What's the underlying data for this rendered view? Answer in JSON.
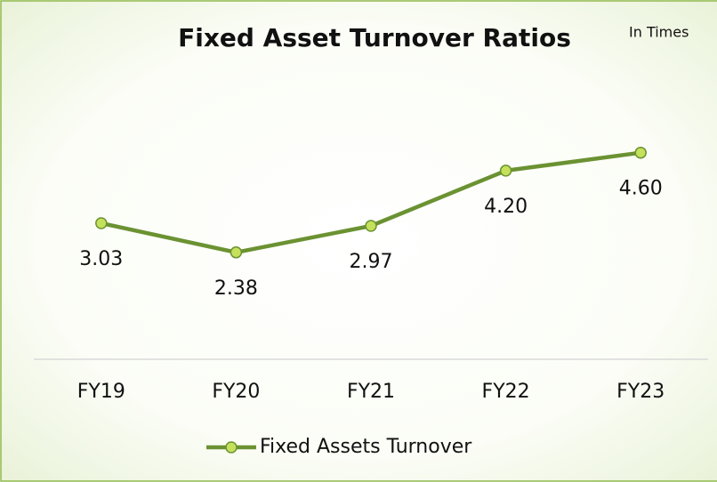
{
  "chart_data": {
    "type": "line",
    "title": "Fixed Asset Turnover Ratios",
    "annotation": "In Times",
    "categories": [
      "FY19",
      "FY20",
      "FY21",
      "FY22",
      "FY23"
    ],
    "series": [
      {
        "name": "Fixed Assets Turnover",
        "color": "#6b9232",
        "marker_color": "#c5e05b",
        "values": [
          3.03,
          2.38,
          2.97,
          4.2,
          4.6
        ],
        "value_labels": [
          "3.03",
          "2.38",
          "2.97",
          "4.20",
          "4.60"
        ]
      }
    ],
    "ylim": [
      0,
      6
    ],
    "legend": "bottom"
  }
}
